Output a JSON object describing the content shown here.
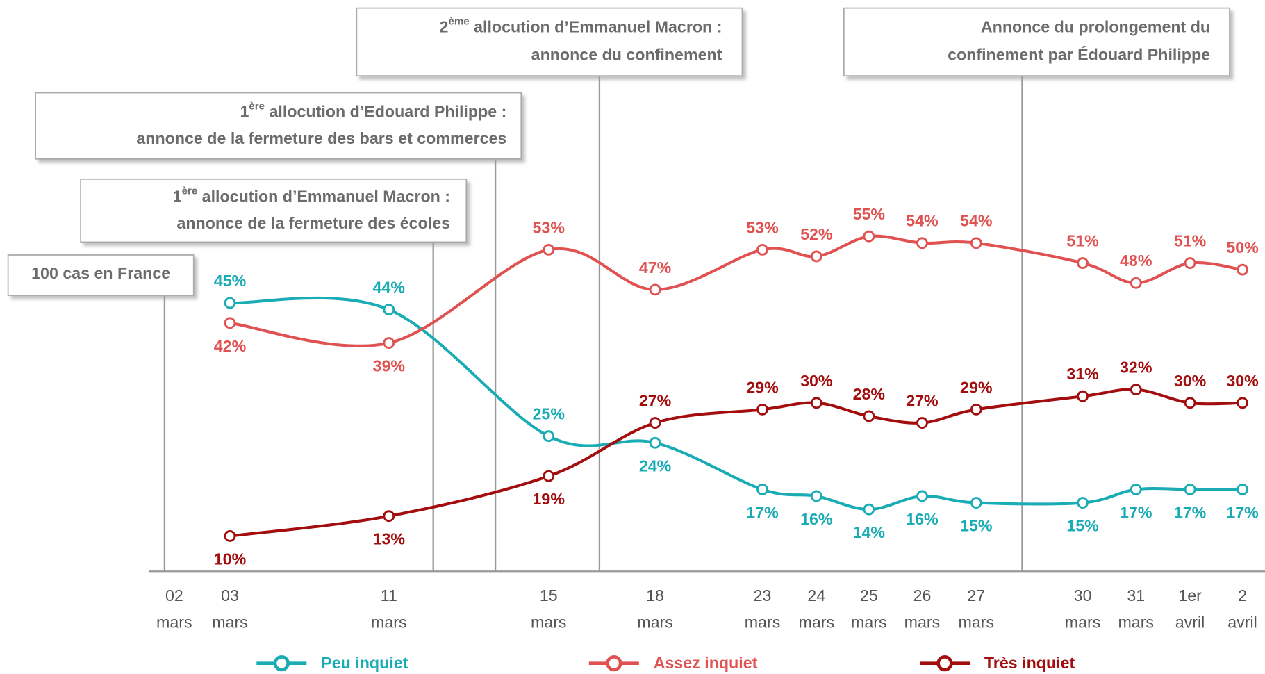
{
  "chart_data": {
    "type": "line",
    "categories": [
      "02 mars",
      "03 mars",
      "11 mars",
      "15 mars",
      "18 mars",
      "23 mars",
      "24 mars",
      "25 mars",
      "26 mars",
      "27 mars",
      "30 mars",
      "31 mars",
      "1er avril",
      "2 avril"
    ],
    "ylim": [
      4.7,
      90.5
    ],
    "series": [
      {
        "name": "Peu inquiet",
        "color": "#1aacb5",
        "values": [
          null,
          45,
          44,
          25,
          24,
          17,
          16,
          14,
          16,
          15,
          15,
          17,
          17,
          17
        ],
        "value_labels": [
          null,
          "45%",
          "44%",
          "25%",
          "24%",
          "17%",
          "16%",
          "14%",
          "16%",
          "15%",
          "15%",
          "17%",
          "17%",
          "17%"
        ]
      },
      {
        "name": "Assez inquiet",
        "color": "#e05252",
        "values": [
          null,
          42,
          39,
          53,
          47,
          53,
          52,
          55,
          54,
          54,
          51,
          48,
          51,
          50
        ],
        "value_labels": [
          null,
          "42%",
          "39%",
          "53%",
          "47%",
          "53%",
          "52%",
          "55%",
          "54%",
          "54%",
          "51%",
          "48%",
          "51%",
          "50%"
        ]
      },
      {
        "name": "Très inquiet",
        "color": "#a30d0d",
        "values": [
          null,
          10,
          13,
          19,
          27,
          29,
          30,
          28,
          27,
          29,
          31,
          32,
          30,
          30
        ],
        "value_labels": [
          null,
          "10%",
          "13%",
          "19%",
          "27%",
          "29%",
          "30%",
          "28%",
          "27%",
          "29%",
          "31%",
          "32%",
          "30%",
          "30%"
        ]
      }
    ],
    "annotations": [
      {
        "line1": "100 cas en France"
      },
      {
        "number": "1",
        "sup": "ère",
        "line1": " allocution d’Emmanuel Macron :",
        "line2": "annonce de la fermeture des écoles"
      },
      {
        "number": "1",
        "sup": "ère",
        "line1": " allocution d’Edouard Philippe :",
        "line2": "annonce de la fermeture des bars et commerces"
      },
      {
        "number": "2",
        "sup": "ème",
        "line1": " allocution d’Emmanuel Macron :",
        "line2": "annonce du confinement"
      },
      {
        "line1": "Annonce du prolongement du",
        "line2": "confinement par Édouard Philippe"
      }
    ]
  }
}
